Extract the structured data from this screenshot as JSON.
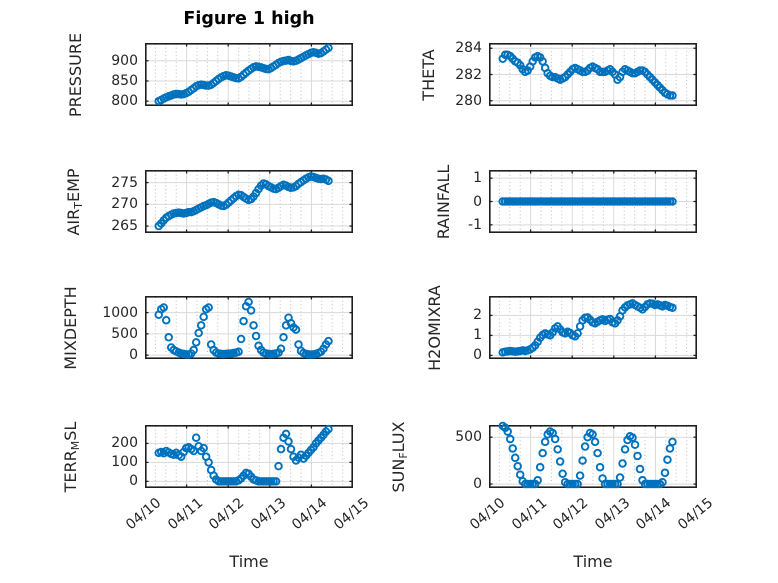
{
  "figure": {
    "title": "Figure 1 high",
    "xlabel": "Time",
    "marker_color": "#0072BD",
    "frame_color": "#1f1f1f",
    "major_grid_color": "#d9d9d9",
    "minor_grid_color": "#bdbdbd",
    "text_color": "#262626"
  },
  "chart_data": {
    "type": "scatter",
    "title": "Figure 1 high",
    "xlabel": "Time",
    "xlim": [
      0,
      5
    ],
    "x_tick_labels": [
      "04/10",
      "04/11",
      "04/12",
      "04/13",
      "04/14",
      "04/15"
    ],
    "x_tick_values": [
      0,
      1,
      2,
      3,
      4,
      5
    ],
    "marker": "open-circle",
    "t0": 0.33,
    "dt": 0.06,
    "series": [
      {
        "name": "PRESSURE",
        "row": 0,
        "col": 0,
        "label": {
          "pre": "PRESSURE",
          "sub": "",
          "post": ""
        },
        "ylim": [
          788,
          944
        ],
        "yticks": [
          800,
          850,
          900
        ],
        "values": [
          800,
          803,
          806.5,
          809.5,
          812,
          814,
          816.5,
          818,
          817.5,
          816.5,
          817.5,
          820,
          823,
          827.5,
          832,
          837,
          839.5,
          841,
          840,
          838.5,
          838.5,
          840.5,
          845,
          850,
          855,
          859,
          862,
          864,
          863,
          861,
          859,
          857,
          856.5,
          860,
          865.5,
          870.5,
          875.5,
          880,
          884,
          886,
          885,
          883.5,
          881.5,
          879.5,
          879,
          882,
          886,
          890,
          894.5,
          897.5,
          899.5,
          900.5,
          902,
          899.5,
          898.5,
          900,
          903,
          906.5,
          910,
          913.5,
          916.5,
          919.5,
          921,
          919.5,
          917.5,
          919,
          923,
          927.5,
          932
        ]
      },
      {
        "name": "THETA",
        "row": 0,
        "col": 1,
        "label": {
          "pre": "THETA",
          "sub": "",
          "post": ""
        },
        "ylim": [
          279.6,
          284.4
        ],
        "yticks": [
          280,
          282,
          284
        ],
        "values": [
          283.2,
          283.5,
          283.5,
          283.4,
          283.2,
          283.0,
          282.9,
          282.7,
          282.4,
          282.2,
          282.3,
          282.6,
          283.0,
          283.3,
          283.4,
          283.3,
          283.0,
          282.5,
          282.1,
          281.9,
          281.8,
          281.8,
          281.7,
          281.6,
          281.7,
          281.8,
          282.0,
          282.2,
          282.4,
          282.5,
          282.4,
          282.3,
          282.2,
          282.2,
          282.3,
          282.5,
          282.6,
          282.5,
          282.4,
          282.2,
          282.2,
          282.2,
          282.3,
          282.4,
          282.2,
          282.0,
          281.6,
          281.8,
          282.2,
          282.4,
          282.3,
          282.2,
          282.1,
          282.1,
          282.2,
          282.3,
          282.3,
          282.2,
          282.0,
          281.8,
          281.6,
          281.4,
          281.2,
          281.0,
          280.8,
          280.6,
          280.5,
          280.4,
          280.4
        ]
      },
      {
        "name": "AIR_TEMP",
        "row": 1,
        "col": 0,
        "label": {
          "pre": "AIR",
          "sub": "T",
          "post": "EMP"
        },
        "ylim": [
          263.4,
          277.9
        ],
        "yticks": [
          265,
          270,
          275
        ],
        "values": [
          265.0,
          265.6,
          266.3,
          266.9,
          267.3,
          267.6,
          267.9,
          268.0,
          268.1,
          268.0,
          267.9,
          268.0,
          268.2,
          268.2,
          268.4,
          268.7,
          269.0,
          269.3,
          269.6,
          269.8,
          270.1,
          270.4,
          270.5,
          270.3,
          270.0,
          269.7,
          269.6,
          269.9,
          270.4,
          270.9,
          271.4,
          271.9,
          272.2,
          272.1,
          271.7,
          271.3,
          271.0,
          271.2,
          271.8,
          272.6,
          273.5,
          274.3,
          274.8,
          274.6,
          274.2,
          273.9,
          273.6,
          273.5,
          273.8,
          274.2,
          274.5,
          274.3,
          274.0,
          273.8,
          273.9,
          274.2,
          274.7,
          275.1,
          275.5,
          275.9,
          276.2,
          276.4,
          276.3,
          276.1,
          275.9,
          275.8,
          275.9,
          275.7,
          275.4
        ]
      },
      {
        "name": "RAINFALL",
        "row": 1,
        "col": 1,
        "label": {
          "pre": "RAINFALL",
          "sub": "",
          "post": ""
        },
        "ylim": [
          -1.35,
          1.35
        ],
        "yticks": [
          1,
          0,
          -1
        ],
        "values": [
          0,
          0,
          0,
          0,
          0,
          0,
          0,
          0,
          0,
          0,
          0,
          0,
          0,
          0,
          0,
          0,
          0,
          0,
          0,
          0,
          0,
          0,
          0,
          0,
          0,
          0,
          0,
          0,
          0,
          0,
          0,
          0,
          0,
          0,
          0,
          0,
          0,
          0,
          0,
          0,
          0,
          0,
          0,
          0,
          0,
          0,
          0,
          0,
          0,
          0,
          0,
          0,
          0,
          0,
          0,
          0,
          0,
          0,
          0,
          0,
          0,
          0,
          0,
          0,
          0,
          0,
          0,
          0,
          0
        ]
      },
      {
        "name": "MIXDEPTH",
        "row": 2,
        "col": 0,
        "label": {
          "pre": "MIXDEPTH",
          "sub": "",
          "post": ""
        },
        "ylim": [
          -90,
          1390
        ],
        "yticks": [
          0,
          500,
          1000
        ],
        "values": [
          950,
          1080,
          1120,
          820,
          420,
          180,
          120,
          90,
          60,
          40,
          30,
          20,
          15,
          40,
          120,
          300,
          520,
          700,
          900,
          1080,
          1120,
          250,
          120,
          60,
          40,
          30,
          25,
          30,
          35,
          40,
          50,
          60,
          80,
          380,
          800,
          1150,
          1250,
          1050,
          700,
          450,
          220,
          120,
          60,
          40,
          30,
          25,
          30,
          40,
          60,
          150,
          420,
          700,
          880,
          750,
          650,
          600,
          250,
          100,
          50,
          30,
          20,
          15,
          20,
          30,
          50,
          80,
          150,
          250,
          330
        ]
      },
      {
        "name": "H2OMIXRA",
        "row": 2,
        "col": 1,
        "label": {
          "pre": "H2OMIXRA",
          "sub": "",
          "post": ""
        },
        "ylim": [
          -0.18,
          2.97
        ],
        "yticks": [
          0,
          1,
          2
        ],
        "values": [
          0.15,
          0.18,
          0.2,
          0.22,
          0.2,
          0.18,
          0.2,
          0.22,
          0.25,
          0.22,
          0.25,
          0.3,
          0.38,
          0.5,
          0.68,
          0.88,
          1.02,
          1.1,
          1.05,
          1.0,
          1.15,
          1.35,
          1.45,
          1.3,
          1.15,
          1.1,
          1.18,
          1.12,
          1.0,
          0.95,
          1.1,
          1.45,
          1.75,
          1.88,
          1.9,
          1.78,
          1.65,
          1.6,
          1.68,
          1.75,
          1.8,
          1.72,
          1.78,
          1.82,
          1.65,
          1.6,
          1.75,
          1.95,
          2.25,
          2.4,
          2.5,
          2.55,
          2.6,
          2.52,
          2.45,
          2.38,
          2.3,
          2.42,
          2.55,
          2.6,
          2.58,
          2.52,
          2.55,
          2.5,
          2.45,
          2.52,
          2.48,
          2.42,
          2.38
        ]
      },
      {
        "name": "TERR_MSL",
        "row": 3,
        "col": 0,
        "label": {
          "pre": "TERR",
          "sub": "M",
          "post": "SL"
        },
        "ylim": [
          -35,
          297
        ],
        "yticks": [
          0,
          100,
          200
        ],
        "values": [
          150,
          155,
          148,
          160,
          152,
          145,
          140,
          150,
          138,
          130,
          155,
          175,
          180,
          170,
          160,
          230,
          185,
          160,
          175,
          130,
          100,
          60,
          30,
          10,
          0,
          0,
          0,
          0,
          0,
          0,
          0,
          0,
          5,
          15,
          30,
          45,
          40,
          25,
          10,
          5,
          0,
          0,
          0,
          0,
          0,
          0,
          0,
          0,
          80,
          170,
          230,
          250,
          210,
          170,
          130,
          110,
          125,
          140,
          120,
          135,
          150,
          165,
          180,
          200,
          215,
          230,
          245,
          262,
          275
        ]
      },
      {
        "name": "SUN_FLUX",
        "row": 3,
        "col": 1,
        "label": {
          "pre": "SUN",
          "sub": "F",
          "post": "LUX"
        },
        "ylim": [
          -42,
          630
        ],
        "yticks": [
          0,
          500
        ],
        "values": [
          620,
          600,
          560,
          480,
          380,
          280,
          190,
          100,
          30,
          0,
          0,
          0,
          0,
          0,
          40,
          180,
          330,
          450,
          530,
          560,
          545,
          480,
          370,
          240,
          110,
          20,
          0,
          0,
          0,
          0,
          0,
          90,
          250,
          400,
          500,
          545,
          530,
          450,
          330,
          180,
          60,
          0,
          0,
          0,
          0,
          0,
          0,
          70,
          220,
          370,
          470,
          510,
          495,
          420,
          300,
          160,
          40,
          0,
          0,
          0,
          0,
          0,
          0,
          0,
          20,
          120,
          260,
          380,
          450
        ]
      }
    ]
  }
}
